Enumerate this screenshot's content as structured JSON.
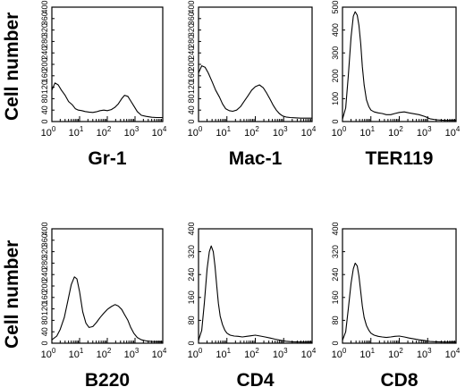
{
  "row_labels": [
    "Cell number",
    "Cell number"
  ],
  "chart_data": [
    {
      "type": "line",
      "title": "Gr-1",
      "ylabel": "Cell number",
      "ylim": [
        0,
        400
      ],
      "yticks": [
        "0",
        "40",
        "80",
        "120",
        "160",
        "200",
        "240",
        "280",
        "320",
        "360",
        "400"
      ],
      "xscale": "log",
      "xlim": [
        1,
        10000
      ],
      "xticks": [
        {
          "base": "10",
          "exp": "0"
        },
        {
          "base": "10",
          "exp": "1"
        },
        {
          "base": "10",
          "exp": "2"
        },
        {
          "base": "10",
          "exp": "3"
        },
        {
          "base": "10",
          "exp": "4"
        }
      ],
      "series": [
        {
          "x": [
            1,
            1.3,
            1.7,
            2.2,
            3,
            4,
            5.5,
            7,
            9,
            12,
            16,
            22,
            30,
            40,
            55,
            75,
            100,
            140,
            190,
            250,
            330,
            420,
            550,
            700,
            900,
            1200,
            1700,
            2500,
            4000,
            6000,
            10000
          ],
          "y": [
            110,
            135,
            128,
            110,
            92,
            70,
            58,
            45,
            40,
            38,
            35,
            33,
            32,
            34,
            38,
            40,
            38,
            42,
            50,
            62,
            80,
            92,
            88,
            72,
            55,
            35,
            22,
            18,
            15,
            14,
            14
          ]
        }
      ]
    },
    {
      "type": "line",
      "title": "Mac-1",
      "ylim": [
        0,
        400
      ],
      "yticks": [
        "0",
        "40",
        "80",
        "120",
        "160",
        "200",
        "240",
        "280",
        "320",
        "360",
        "400"
      ],
      "xscale": "log",
      "xlim": [
        1,
        10000
      ],
      "xticks": [
        {
          "base": "10",
          "exp": "0"
        },
        {
          "base": "10",
          "exp": "1"
        },
        {
          "base": "10",
          "exp": "2"
        },
        {
          "base": "10",
          "exp": "3"
        },
        {
          "base": "10",
          "exp": "4"
        }
      ],
      "series": [
        {
          "x": [
            1,
            1.3,
            1.7,
            2.2,
            3,
            4,
            5.5,
            7,
            9,
            12,
            16,
            22,
            30,
            40,
            55,
            75,
            100,
            140,
            190,
            250,
            330,
            420,
            550,
            700,
            900,
            1200,
            1700,
            2500,
            4000,
            6000,
            10000
          ],
          "y": [
            170,
            195,
            190,
            170,
            140,
            110,
            85,
            62,
            45,
            38,
            36,
            40,
            52,
            70,
            90,
            110,
            122,
            128,
            118,
            100,
            78,
            58,
            40,
            28,
            20,
            16,
            14,
            13,
            12,
            12,
            12
          ]
        }
      ]
    },
    {
      "type": "line",
      "title": "TER119",
      "ylim": [
        0,
        500
      ],
      "yticks": [
        "0",
        "100",
        "200",
        "300",
        "400",
        "500"
      ],
      "xscale": "log",
      "xlim": [
        1,
        10000
      ],
      "xticks": [
        {
          "base": "10",
          "exp": "0"
        },
        {
          "base": "10",
          "exp": "1"
        },
        {
          "base": "10",
          "exp": "2"
        },
        {
          "base": "10",
          "exp": "3"
        },
        {
          "base": "10",
          "exp": "4"
        }
      ],
      "series": [
        {
          "x": [
            1,
            1.3,
            1.6,
            2,
            2.4,
            2.8,
            3.3,
            3.8,
            4.4,
            5,
            5.8,
            7,
            8.5,
            10,
            13,
            18,
            25,
            35,
            50,
            70,
            100,
            150,
            220,
            330,
            500,
            800,
            1200,
            2000,
            4000,
            10000
          ],
          "y": [
            10,
            60,
            200,
            370,
            460,
            480,
            465,
            420,
            340,
            240,
            160,
            95,
            65,
            50,
            42,
            38,
            35,
            30,
            30,
            35,
            40,
            42,
            38,
            34,
            30,
            22,
            12,
            8,
            5,
            5
          ]
        }
      ]
    },
    {
      "type": "line",
      "title": "B220",
      "ylabel": "Cell number",
      "ylim": [
        0,
        400
      ],
      "yticks": [
        "0",
        "40",
        "80",
        "120",
        "160",
        "200",
        "240",
        "280",
        "320",
        "360",
        "400"
      ],
      "xscale": "log",
      "xlim": [
        1,
        10000
      ],
      "xticks": [
        {
          "base": "10",
          "exp": "0"
        },
        {
          "base": "10",
          "exp": "1"
        },
        {
          "base": "10",
          "exp": "2"
        },
        {
          "base": "10",
          "exp": "3"
        },
        {
          "base": "10",
          "exp": "4"
        }
      ],
      "series": [
        {
          "x": [
            1,
            1.5,
            2,
            2.8,
            3.8,
            5,
            6.5,
            8,
            10,
            13,
            17,
            22,
            30,
            40,
            55,
            75,
            100,
            140,
            190,
            250,
            330,
            420,
            550,
            700,
            900,
            1200,
            1700,
            2500,
            4000,
            10000
          ],
          "y": [
            12,
            25,
            48,
            90,
            150,
            205,
            232,
            225,
            180,
            110,
            70,
            55,
            58,
            72,
            90,
            105,
            118,
            128,
            135,
            130,
            118,
            100,
            80,
            55,
            35,
            20,
            12,
            8,
            6,
            5
          ]
        }
      ]
    },
    {
      "type": "line",
      "title": "CD4",
      "ylim": [
        0,
        400
      ],
      "yticks": [
        "0",
        "80",
        "160",
        "240",
        "320",
        "400"
      ],
      "xscale": "log",
      "xlim": [
        1,
        10000
      ],
      "xticks": [
        {
          "base": "10",
          "exp": "0"
        },
        {
          "base": "10",
          "exp": "1"
        },
        {
          "base": "10",
          "exp": "2"
        },
        {
          "base": "10",
          "exp": "3"
        },
        {
          "base": "10",
          "exp": "4"
        }
      ],
      "series": [
        {
          "x": [
            1,
            1.3,
            1.6,
            2,
            2.4,
            2.8,
            3.3,
            3.8,
            4.4,
            5,
            5.8,
            7,
            8.5,
            10,
            13,
            18,
            25,
            35,
            50,
            70,
            100,
            150,
            220,
            330,
            500,
            800,
            1200,
            2000,
            4000,
            10000
          ],
          "y": [
            10,
            45,
            140,
            260,
            320,
            340,
            320,
            270,
            200,
            140,
            95,
            65,
            45,
            35,
            28,
            25,
            24,
            22,
            24,
            26,
            28,
            25,
            22,
            18,
            14,
            10,
            7,
            5,
            4,
            4
          ]
        }
      ]
    },
    {
      "type": "line",
      "title": "CD8",
      "ylim": [
        0,
        400
      ],
      "yticks": [
        "0",
        "80",
        "160",
        "240",
        "320",
        "400"
      ],
      "xscale": "log",
      "xlim": [
        1,
        10000
      ],
      "xticks": [
        {
          "base": "10",
          "exp": "0"
        },
        {
          "base": "10",
          "exp": "1"
        },
        {
          "base": "10",
          "exp": "2"
        },
        {
          "base": "10",
          "exp": "3"
        },
        {
          "base": "10",
          "exp": "4"
        }
      ],
      "series": [
        {
          "x": [
            1,
            1.3,
            1.6,
            2,
            2.4,
            2.8,
            3.3,
            3.8,
            4.4,
            5,
            5.8,
            7,
            8.5,
            10,
            13,
            18,
            25,
            35,
            50,
            70,
            100,
            150,
            220,
            330,
            500,
            800,
            1200,
            2000,
            4000,
            10000
          ],
          "y": [
            10,
            40,
            120,
            210,
            260,
            280,
            270,
            235,
            180,
            130,
            90,
            62,
            45,
            35,
            28,
            24,
            22,
            20,
            22,
            24,
            25,
            22,
            18,
            15,
            12,
            9,
            6,
            5,
            4,
            4
          ]
        }
      ]
    }
  ]
}
